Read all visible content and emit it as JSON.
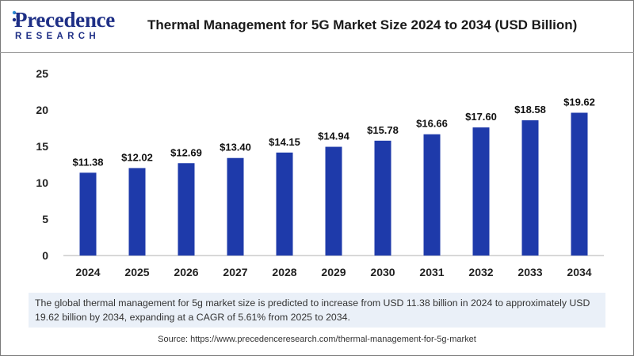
{
  "logo": {
    "name": "Precedence",
    "tagline": "RESEARCH"
  },
  "title": "Thermal Management for 5G Market Size 2024 to 2034 (USD Billion)",
  "description": "The global thermal management for 5g market size is predicted to increase from USD 11.38 billion in 2024 to approximately USD 19.62 billion by 2034, expanding at a CAGR of 5.61% from 2025 to 2034.",
  "source": "Source: https://www.precedenceresearch.com/thermal-management-for-5g-market",
  "colors": {
    "bar": "#1e3aaa",
    "brand": "#1e2f86",
    "panel": "#eaf0f8"
  },
  "chart_data": {
    "type": "bar",
    "title": "Thermal Management for 5G Market Size 2024 to 2034 (USD Billion)",
    "categories": [
      "2024",
      "2025",
      "2026",
      "2027",
      "2028",
      "2029",
      "2030",
      "2031",
      "2032",
      "2033",
      "2034"
    ],
    "values": [
      11.38,
      12.02,
      12.69,
      13.4,
      14.15,
      14.94,
      15.78,
      16.66,
      17.6,
      18.58,
      19.62
    ],
    "data_labels": [
      "$11.38",
      "$12.02",
      "$12.69",
      "$13.40",
      "$14.15",
      "$14.94",
      "$15.78",
      "$16.66",
      "$17.60",
      "$18.58",
      "$19.62"
    ],
    "y_ticks": [
      0,
      5,
      10,
      15,
      20,
      25
    ],
    "ylim": [
      0,
      25
    ],
    "xlabel": "",
    "ylabel": "",
    "grid": false,
    "legend": "none"
  }
}
